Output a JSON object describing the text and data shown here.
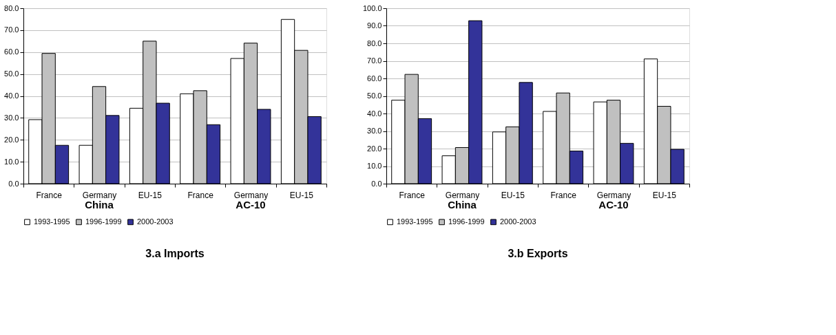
{
  "chart_data": [
    {
      "type": "bar",
      "title": "3.a Imports",
      "categories": [
        "France",
        "Germany",
        "EU-15",
        "France",
        "Germany",
        "EU-15"
      ],
      "series": [
        {
          "name": "1993-1995",
          "color": "#ffffff",
          "values": [
            29.2,
            17.5,
            34.4,
            41.0,
            57.1,
            74.9
          ]
        },
        {
          "name": "1996-1999",
          "color": "#c0c0c0",
          "values": [
            59.4,
            44.3,
            65.0,
            42.4,
            64.1,
            60.8
          ]
        },
        {
          "name": "2000-2003",
          "color": "#333399",
          "values": [
            17.5,
            31.1,
            36.7,
            26.9,
            33.9,
            30.6
          ]
        }
      ],
      "ylim": [
        0,
        80
      ],
      "yticks": [
        {
          "value": 0,
          "label": "0.0"
        },
        {
          "value": 10,
          "label": "10.0"
        },
        {
          "value": 20,
          "label": "20.0"
        },
        {
          "value": 30,
          "label": "30.0"
        },
        {
          "value": 40,
          "label": "40.0"
        },
        {
          "value": 50,
          "label": "50.0"
        },
        {
          "value": 60,
          "label": "60.0"
        },
        {
          "value": 70,
          "label": "70.0"
        },
        {
          "value": 80,
          "label": "80.0"
        }
      ],
      "grid": "y",
      "legend": "bottom",
      "annotations": [
        "China",
        "AC-10"
      ]
    },
    {
      "type": "bar",
      "title": "3.b Exports",
      "categories": [
        "France",
        "Germany",
        "EU-15",
        "France",
        "Germany",
        "EU-15"
      ],
      "series": [
        {
          "name": "1993-1995",
          "color": "#ffffff",
          "values": [
            47.6,
            15.9,
            29.5,
            41.2,
            46.6,
            71.1
          ]
        },
        {
          "name": "1996-1999",
          "color": "#c0c0c0",
          "values": [
            62.3,
            20.6,
            32.4,
            51.7,
            47.6,
            44.1
          ]
        },
        {
          "name": "2000-2003",
          "color": "#333399",
          "values": [
            37.1,
            92.9,
            57.7,
            18.6,
            23.0,
            19.6
          ]
        }
      ],
      "ylim": [
        0,
        100
      ],
      "yticks": [
        {
          "value": 0,
          "label": "0.0"
        },
        {
          "value": 10,
          "label": "10.0"
        },
        {
          "value": 20,
          "label": "20.0"
        },
        {
          "value": 30,
          "label": "30.0"
        },
        {
          "value": 40,
          "label": "40.0"
        },
        {
          "value": 50,
          "label": "50.0"
        },
        {
          "value": 60,
          "label": "60.0"
        },
        {
          "value": 70,
          "label": "70.0"
        },
        {
          "value": 80,
          "label": "80.0"
        },
        {
          "value": 90,
          "label": "90.0"
        },
        {
          "value": 100,
          "label": "100.0"
        }
      ],
      "grid": "y",
      "legend": "bottom",
      "annotations": [
        "China",
        "AC-10"
      ]
    }
  ]
}
